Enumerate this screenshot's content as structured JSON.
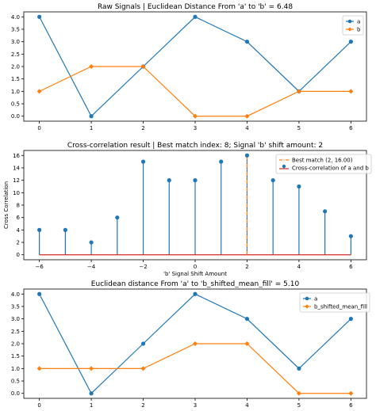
{
  "chart_data": [
    {
      "type": "line",
      "title": "Raw Signals | Euclidean Distance From 'a' to 'b' = 6.48",
      "xlabel": "",
      "ylabel": "",
      "x": [
        0,
        1,
        2,
        3,
        4,
        5,
        6
      ],
      "xlim": [
        -0.3,
        6.3
      ],
      "ylim": [
        -0.2,
        4.2
      ],
      "xticks": [
        0,
        1,
        2,
        3,
        4,
        5,
        6
      ],
      "yticks": [
        0.0,
        0.5,
        1.0,
        1.5,
        2.0,
        2.5,
        3.0,
        3.5,
        4.0
      ],
      "legend_position": "top-right",
      "series": [
        {
          "name": "a",
          "values": [
            4,
            0,
            2,
            4,
            3,
            1,
            3
          ],
          "color": "#1f77b4",
          "marker": "circle"
        },
        {
          "name": "b",
          "values": [
            1,
            2,
            2,
            0,
            0,
            1,
            1
          ],
          "color": "#ff7f0e",
          "marker": "diamond"
        }
      ]
    },
    {
      "type": "stem",
      "title": "Cross-correlation result | Best match index: 8; Signal 'b' shift amount: 2",
      "xlabel": "'b' Signal Shift Amount",
      "ylabel": "Cross Correlation",
      "x": [
        -6,
        -5,
        -4,
        -3,
        -2,
        -1,
        0,
        1,
        2,
        3,
        4,
        5,
        6
      ],
      "xlim": [
        -6.6,
        6.6
      ],
      "ylim": [
        -0.8,
        16.8
      ],
      "xticks": [
        -6,
        -4,
        -2,
        0,
        2,
        4,
        6
      ],
      "yticks": [
        0,
        2,
        4,
        6,
        8,
        10,
        12,
        14,
        16
      ],
      "legend_position": "top-right",
      "series": [
        {
          "name": "Cross-correlation of a and b",
          "values": [
            4,
            4,
            2,
            6,
            15,
            12,
            12,
            15,
            16,
            12,
            11,
            7,
            3
          ],
          "color": "#1f77b4",
          "baseline_color": "#d62728"
        }
      ],
      "best_match": {
        "label": "Best match (2, 16.00)",
        "x": 2,
        "y": 16,
        "color": "#ff7f0e"
      }
    },
    {
      "type": "line",
      "title": "Euclidean distance From 'a' to 'b_shifted_mean_fill' = 5.10",
      "xlabel": "",
      "ylabel": "",
      "x": [
        0,
        1,
        2,
        3,
        4,
        5,
        6
      ],
      "xlim": [
        -0.3,
        6.3
      ],
      "ylim": [
        -0.2,
        4.2
      ],
      "xticks": [
        0,
        1,
        2,
        3,
        4,
        5,
        6
      ],
      "yticks": [
        0.0,
        0.5,
        1.0,
        1.5,
        2.0,
        2.5,
        3.0,
        3.5,
        4.0
      ],
      "legend_position": "top-right",
      "series": [
        {
          "name": "a",
          "values": [
            4,
            0,
            2,
            4,
            3,
            1,
            3
          ],
          "color": "#1f77b4",
          "marker": "circle"
        },
        {
          "name": "b_shifted_mean_fill",
          "values": [
            1,
            1,
            1,
            2,
            2,
            0,
            0
          ],
          "color": "#ff7f0e",
          "marker": "diamond"
        }
      ]
    }
  ]
}
